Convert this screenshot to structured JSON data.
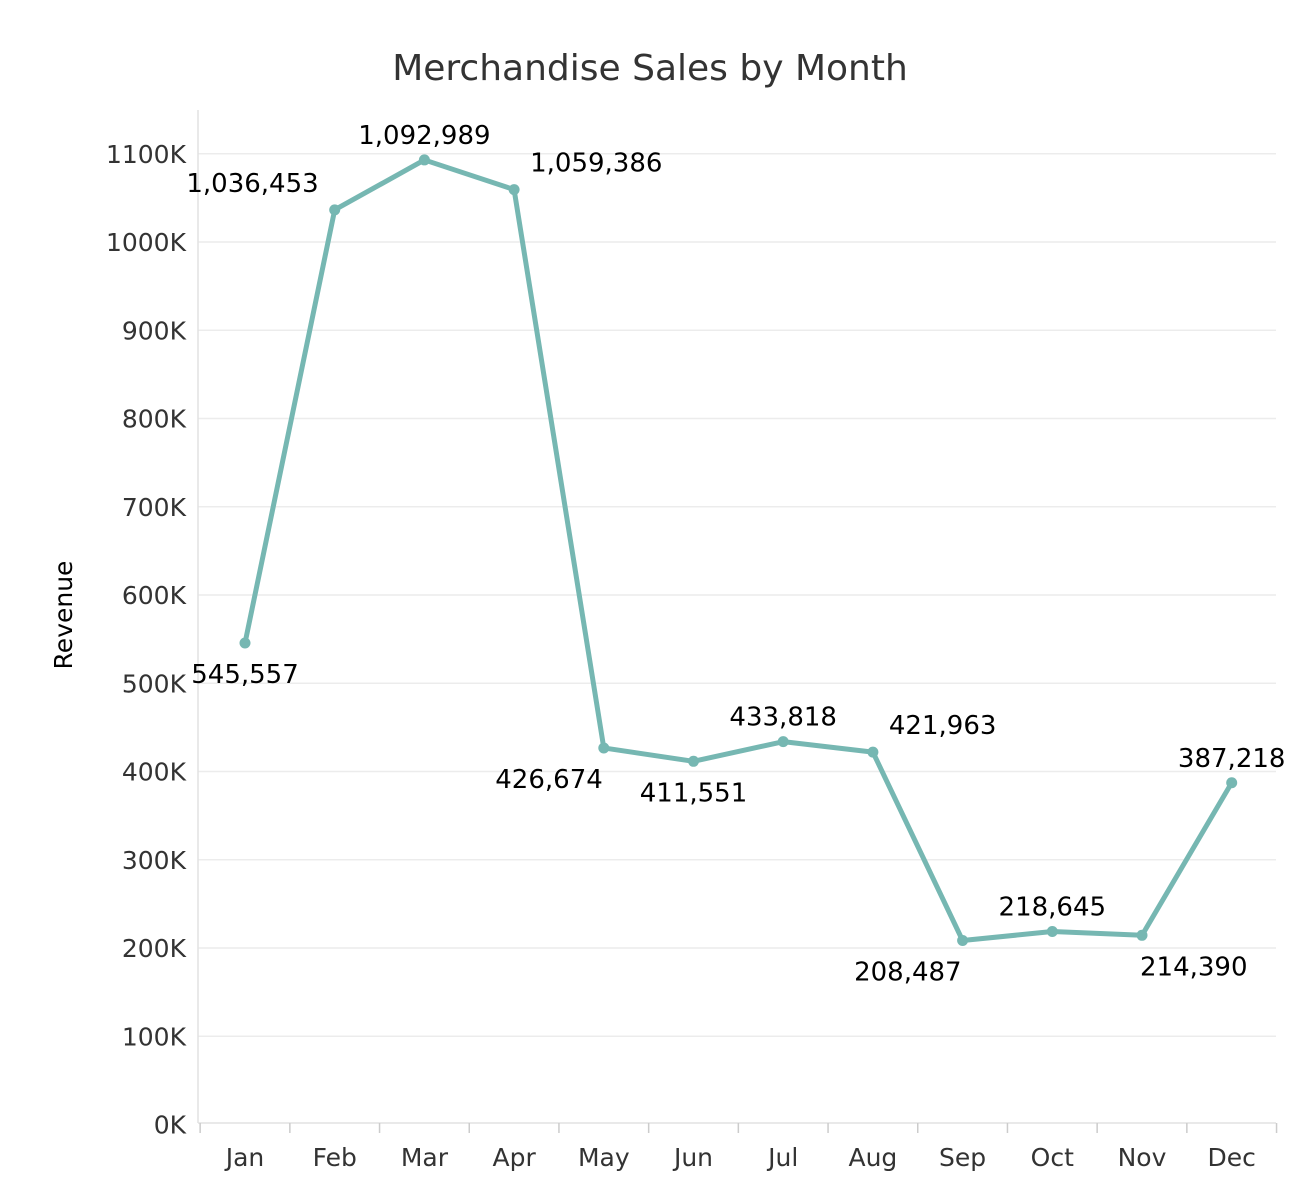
{
  "chart_data": {
    "type": "line",
    "title": "Merchandise Sales by Month",
    "xlabel": "",
    "ylabel": "Revenue",
    "categories": [
      "Jan",
      "Feb",
      "Mar",
      "Apr",
      "May",
      "Jun",
      "Jul",
      "Aug",
      "Sep",
      "Oct",
      "Nov",
      "Dec"
    ],
    "series": [
      {
        "values": [
          545557,
          1036453,
          1092989,
          1059386,
          426674,
          411551,
          433818,
          421963,
          208487,
          218645,
          214390,
          387218
        ],
        "data_labels": [
          "545,557",
          "1,036,453",
          "1,092,989",
          "1,059,386",
          "426,674",
          "411,551",
          "433,818",
          "421,963",
          "208,487",
          "218,645",
          "214,390",
          "387,218"
        ],
        "color": "#76b7b2"
      }
    ],
    "y_ticks": [
      0,
      100000,
      200000,
      300000,
      400000,
      500000,
      600000,
      700000,
      800000,
      900000,
      1000000,
      1100000
    ],
    "y_tick_labels": [
      "0K",
      "100K",
      "200K",
      "300K",
      "400K",
      "500K",
      "600K",
      "700K",
      "800K",
      "900K",
      "1000K",
      "1100K"
    ],
    "ylim": [
      0,
      1100000
    ],
    "grid": true,
    "legend": "none",
    "label_placement": [
      "below",
      "above-left",
      "above",
      "above-right",
      "below-left",
      "below",
      "above",
      "above-right",
      "below-left",
      "above",
      "below-right",
      "above"
    ]
  }
}
